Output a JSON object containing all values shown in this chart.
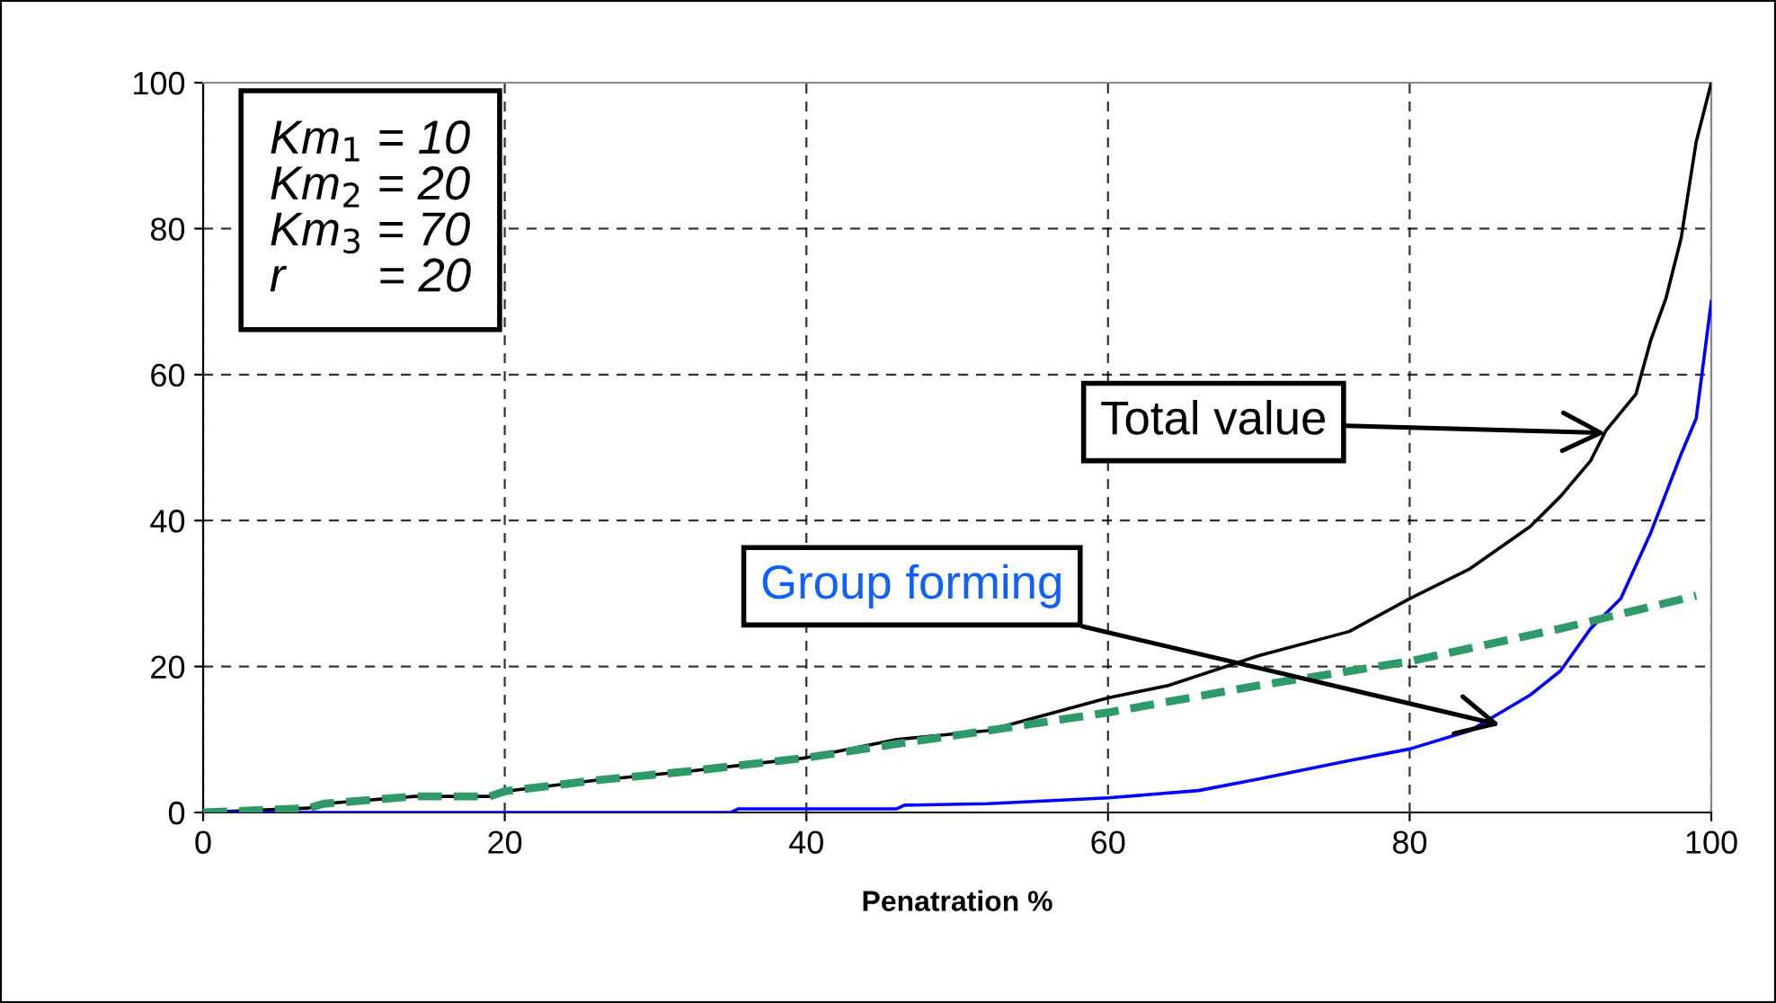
{
  "chart_data": {
    "type": "line",
    "xlabel": "Penatration %",
    "xlim": [
      0,
      100
    ],
    "ylim": [
      0,
      100
    ],
    "xticks": [
      0,
      20,
      40,
      60,
      80,
      100
    ],
    "yticks": [
      0,
      20,
      40,
      60,
      80,
      100
    ],
    "grid": true,
    "series": [
      {
        "color": "#000000",
        "line_style": "solid",
        "x": [
          0,
          7,
          8,
          14,
          19,
          20,
          26,
          32,
          40,
          46,
          52,
          60,
          64,
          70,
          76,
          80,
          84,
          88,
          90,
          92,
          93,
          95,
          96,
          97,
          98,
          99,
          100
        ],
        "values": [
          0,
          0.6,
          1.2,
          2.2,
          2.2,
          2.9,
          4.4,
          5.6,
          7.5,
          10,
          11.2,
          15.7,
          17.4,
          21.5,
          24.8,
          29.3,
          33.4,
          39.2,
          43.3,
          48.2,
          52.3,
          57.3,
          64.8,
          70.5,
          78.7,
          91.9,
          100
        ]
      },
      {
        "color": "#0000ff",
        "line_style": "solid",
        "x": [
          0,
          35,
          35.5,
          46,
          46.5,
          52,
          60,
          66,
          70,
          76,
          80,
          84,
          88,
          90,
          92,
          94,
          96,
          98,
          99,
          100
        ],
        "values": [
          0,
          0,
          0.5,
          0.5,
          1,
          1.2,
          2,
          3,
          4.6,
          7.1,
          8.7,
          11.2,
          16.1,
          19.4,
          25.2,
          29.3,
          38.4,
          49.1,
          54,
          70
        ]
      },
      {
        "color": "#2e9a68",
        "line_style": "dashed",
        "x": [
          0,
          7,
          8,
          14,
          19,
          20,
          26,
          32,
          40,
          46,
          52,
          60,
          70,
          80,
          90,
          99
        ],
        "values": [
          0,
          0.6,
          1.2,
          2.2,
          2.2,
          2.9,
          4.4,
          5.6,
          7.5,
          9.4,
          11.2,
          13.7,
          17.4,
          20.7,
          25.2,
          29.7
        ]
      }
    ],
    "annotations": [
      "Km$_{1}$ = 10",
      "Km$_{2}$ = 20",
      "Km$_{3}$ = 70",
      "r       = 20",
      {
        "text": "Total value",
        "x": 93,
        "y": 52
      },
      {
        "text": "Group forming",
        "x": 86,
        "y": 12
      }
    ]
  }
}
